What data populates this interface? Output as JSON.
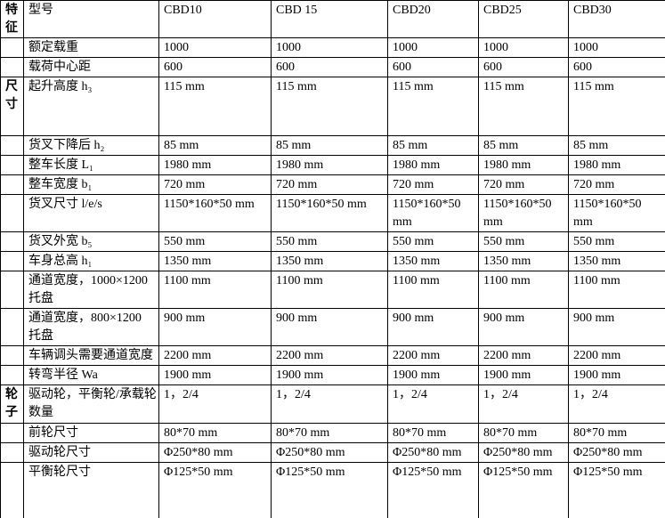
{
  "table": {
    "rows": [
      {
        "group": "特征",
        "label": "型号",
        "values": [
          "CBD10",
          "CBD 15",
          "CBD20",
          "CBD25",
          "CBD30"
        ]
      },
      {
        "group": "",
        "label": "额定载重",
        "values": [
          "1000",
          "1000",
          "1000",
          "1000",
          "1000"
        ]
      },
      {
        "group": "",
        "label": "载荷中心距",
        "values": [
          "600",
          "600",
          "600",
          "600",
          "600"
        ]
      },
      {
        "group": "尺寸",
        "label": "起升高度 h₃",
        "values": [
          "115 mm",
          "115 mm",
          "115 mm",
          "115 mm",
          "115 mm"
        ]
      },
      {
        "group": "",
        "label": "货叉下降后 h₂",
        "values": [
          "85 mm",
          "85 mm",
          "85 mm",
          "85 mm",
          "85 mm"
        ]
      },
      {
        "group": "",
        "label": "整车长度 L₁",
        "values": [
          "1980 mm",
          "1980 mm",
          "1980 mm",
          "1980 mm",
          "1980 mm"
        ]
      },
      {
        "group": "",
        "label": "整车宽度 b₁",
        "values": [
          "720 mm",
          "720 mm",
          "720 mm",
          "720 mm",
          "720 mm"
        ]
      },
      {
        "group": "",
        "label": "货叉尺寸 l/e/s",
        "values": [
          "1150*160*50 mm",
          "1150*160*50 mm",
          "1150*160*50 mm",
          "1150*160*50 mm",
          "1150*160*50 mm"
        ]
      },
      {
        "group": "",
        "label": "货叉外宽 b₅",
        "values": [
          "550 mm",
          "550 mm",
          "550 mm",
          "550 mm",
          "550 mm"
        ]
      },
      {
        "group": "",
        "label": "车身总高 h₁",
        "values": [
          "1350 mm",
          "1350 mm",
          "1350 mm",
          "1350 mm",
          "1350 mm"
        ]
      },
      {
        "group": "",
        "label": "通道宽度，1000×1200 托盘",
        "values": [
          "1100 mm",
          "1100 mm",
          "1100 mm",
          "1100 mm",
          "1100 mm"
        ]
      },
      {
        "group": "",
        "label": "通道宽度，800×1200 托盘",
        "values": [
          "900 mm",
          "900 mm",
          "900 mm",
          "900 mm",
          "900 mm"
        ]
      },
      {
        "group": "",
        "label": "车辆调头需要通道宽度",
        "values": [
          "2200 mm",
          "2200 mm",
          "2200 mm",
          "2200 mm",
          "2200 mm"
        ]
      },
      {
        "group": "",
        "label": "转弯半径 Wa",
        "values": [
          "1900 mm",
          "1900 mm",
          "1900 mm",
          "1900 mm",
          "1900 mm"
        ]
      },
      {
        "group": "轮子",
        "label": "驱动轮，平衡轮/承载轮数量",
        "values": [
          "1，2/4",
          "1，2/4",
          "1，2/4",
          "1，2/4",
          "1，2/4"
        ]
      },
      {
        "group": "",
        "label": "前轮尺寸",
        "values": [
          "80*70 mm",
          "80*70 mm",
          "80*70 mm",
          "80*70 mm",
          "80*70 mm"
        ]
      },
      {
        "group": "",
        "label": "驱动轮尺寸",
        "values": [
          "Φ250*80 mm",
          "Φ250*80 mm",
          "Φ250*80 mm",
          "Φ250*80 mm",
          "Φ250*80 mm"
        ]
      },
      {
        "group": "",
        "label": "平衡轮尺寸",
        "values": [
          "Φ125*50 mm",
          "Φ125*50 mm",
          "Φ125*50 mm",
          "Φ125*50 mm",
          "Φ125*50 mm"
        ]
      }
    ]
  }
}
